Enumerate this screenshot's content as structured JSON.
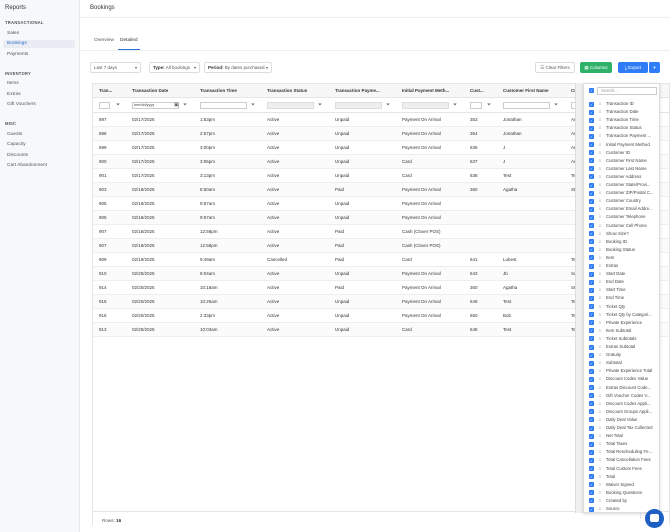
{
  "sidebar": {
    "title": "Reports",
    "sections": [
      {
        "label": "TRANSACTIONAL",
        "items": [
          {
            "label": "Sales"
          },
          {
            "label": "Bookings",
            "active": true
          },
          {
            "label": "Payments"
          }
        ]
      },
      {
        "label": "INVENTORY",
        "items": [
          {
            "label": "Items"
          },
          {
            "label": "Extras"
          },
          {
            "label": "Gift Vouchers"
          }
        ]
      },
      {
        "label": "MISC",
        "items": [
          {
            "label": "Guests"
          },
          {
            "label": "Capacity"
          },
          {
            "label": "Discounts"
          },
          {
            "label": "Cart Abandonment"
          }
        ]
      }
    ]
  },
  "page": {
    "title": "Bookings"
  },
  "tabs": [
    {
      "label": "Overview"
    },
    {
      "label": "Detailed",
      "active": true
    }
  ],
  "filters": {
    "date_range": "Last 7 days",
    "type_label": "Type:",
    "type_value": "All bookings",
    "period_label": "Period:",
    "period_value": "By dates purchased"
  },
  "toolbar": {
    "clear_label": "Clear Filters",
    "columns_label": "Columns",
    "export_label": "Export"
  },
  "table": {
    "headers": [
      "Tran...",
      "Transaction Date",
      "Transaction Time",
      "Transaction Status",
      "Transaction Payme...",
      "Initial Payment Meth...",
      "Cust...",
      "Customer First Name",
      "Custo"
    ],
    "date_placeholder": "mm/dd/yyyy",
    "rows": [
      [
        "897",
        "02/17/2025",
        "1:53pm",
        "Active",
        "Unpaid",
        "Payment On Arrival",
        "353",
        "Jonathan",
        "Arana"
      ],
      [
        "898",
        "02/17/2025",
        "2:57pm",
        "Active",
        "Unpaid",
        "Payment On Arrival",
        "354",
        "Jonathan",
        "Arana"
      ],
      [
        "899",
        "02/17/2025",
        "3:00pm",
        "Active",
        "Unpaid",
        "Payment On Arrival",
        "636",
        "J",
        "Arana"
      ],
      [
        "900",
        "02/17/2025",
        "3:06pm",
        "Active",
        "Unpaid",
        "Card",
        "637",
        "J",
        "Arana"
      ],
      [
        "901",
        "02/17/2025",
        "3:13pm",
        "Active",
        "Unpaid",
        "Card",
        "638",
        "Test",
        "Test"
      ],
      [
        "903",
        "02/18/2025",
        "8:50am",
        "Active",
        "Paid",
        "Payment On Arrival",
        "360",
        "Agatha",
        "Stopni"
      ],
      [
        "905",
        "02/18/2025",
        "9:57am",
        "Active",
        "Unpaid",
        "Payment On Arrival",
        "",
        "",
        ""
      ],
      [
        "905",
        "02/18/2025",
        "9:57am",
        "Active",
        "Unpaid",
        "Payment On Arrival",
        "",
        "",
        ""
      ],
      [
        "907",
        "02/18/2025",
        "12:58pm",
        "Active",
        "Paid",
        "Cash (Clover POS)",
        "",
        "",
        ""
      ],
      [
        "907",
        "02/18/2025",
        "12:58pm",
        "Active",
        "Paid",
        "Cash (Clover POS)",
        "",
        "",
        ""
      ],
      [
        "909",
        "02/19/2025",
        "9:49am",
        "Cancelled",
        "Paid",
        "Card",
        "641",
        "Lubest",
        "Test"
      ],
      [
        "910",
        "02/20/2025",
        "8:04am",
        "Active",
        "Unpaid",
        "Payment On Arrival",
        "643",
        "Jb",
        "Sdf"
      ],
      [
        "914",
        "02/20/2025",
        "10:18am",
        "Active",
        "Paid",
        "Payment On Arrival",
        "360",
        "Agatha",
        "Stopni"
      ],
      [
        "915",
        "02/20/2025",
        "10:25am",
        "Active",
        "Unpaid",
        "Payment On Arrival",
        "649",
        "Test",
        "Test"
      ],
      [
        "916",
        "02/20/2025",
        "2:33pm",
        "Active",
        "Unpaid",
        "Payment On Arrival",
        "650",
        "Bob",
        "Test"
      ],
      [
        "913",
        "02/20/2025",
        "10:03am",
        "Active",
        "Unpaid",
        "Card",
        "648",
        "Test",
        "Test"
      ]
    ]
  },
  "footer": {
    "rows_label": "Rows:",
    "rows_count": "16"
  },
  "column_panel": {
    "search_placeholder": "Search...",
    "columns": [
      "Transaction ID",
      "Transaction Date",
      "Transaction Time",
      "Transaction Status",
      "Transaction Payment ...",
      "Initial Payment Method",
      "Customer ID",
      "Customer First Name",
      "Customer Last Name",
      "Customer Address",
      "Customer State/Provi...",
      "Customer ZIP/Postal C...",
      "Customer Country",
      "Customer Email Addre...",
      "Customer Telephone",
      "Customer Cell Phone",
      "Show Size?",
      "Booking ID",
      "Booking Status",
      "Item",
      "Extras",
      "Start Date",
      "End Date",
      "Start Time",
      "End Time",
      "Ticket Qty",
      "Ticket Qty by Categori...",
      "Private Experience",
      "Item Subtotal",
      "Ticket Subtotals",
      "Extras Subtotal",
      "Gratuity",
      "Subtotal",
      "Private Experience Total",
      "Discount Codes Value",
      "Extras Discount Code...",
      "Gift Voucher Codes V...",
      "Discount Codes Appli...",
      "Discount Groups Appli...",
      "Daily Deal Value",
      "Daily Deal Tax Collected",
      "Net Total",
      "Total Taxes",
      "Total Rescheduling Fe...",
      "Total Cancellation Fees",
      "Total Custom Fees",
      "Total",
      "Waiver Signed",
      "Booking Questions",
      "Created by",
      "Source"
    ]
  },
  "colors": {
    "accent": "#2e7cf6",
    "columns_button": "#2fb16a",
    "chat": "#1d5fc2"
  }
}
